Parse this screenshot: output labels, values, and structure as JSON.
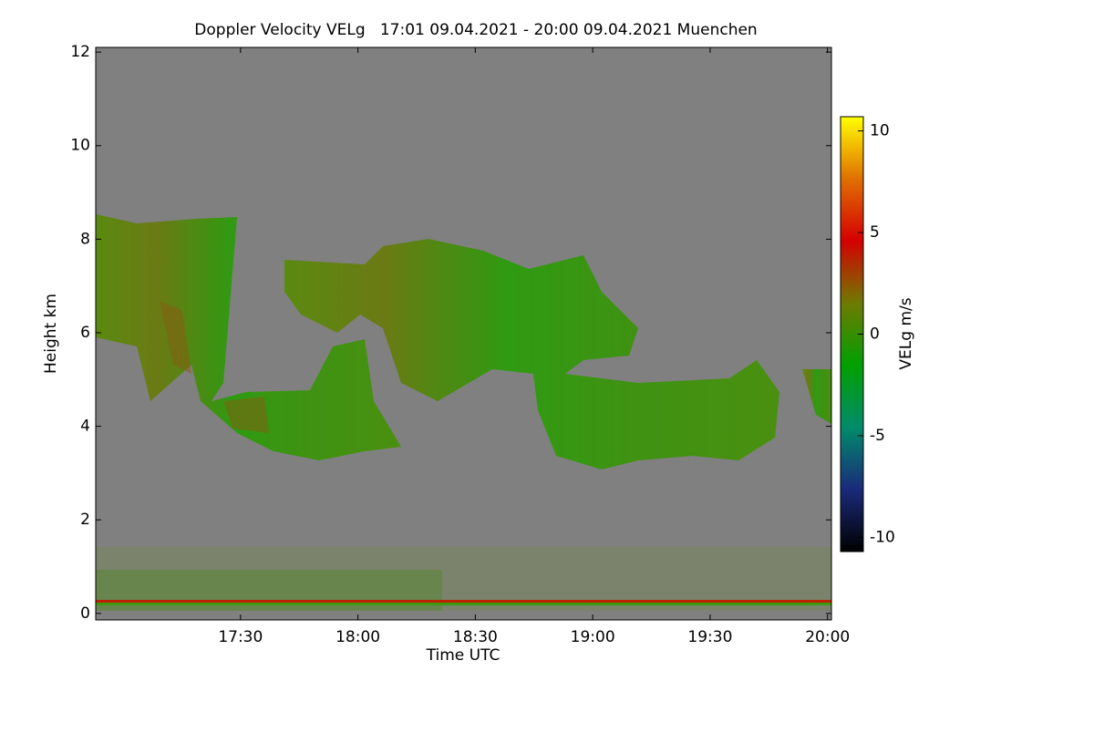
{
  "chart_data": {
    "type": "heatmap",
    "title": "Doppler Velocity VELg   17:01 09.04.2021 - 20:00 09.04.2021 Muenchen",
    "xlabel": "Time UTC",
    "ylabel": "Height km",
    "xlim": [
      1013,
      1201
    ],
    "xticks": [
      {
        "value": 1050,
        "label": "17:30"
      },
      {
        "value": 1080,
        "label": "18:00"
      },
      {
        "value": 1110,
        "label": "18:30"
      },
      {
        "value": 1140,
        "label": "19:00"
      },
      {
        "value": 1170,
        "label": "19:30"
      },
      {
        "value": 1200,
        "label": "20:00"
      }
    ],
    "ylim": [
      -0.14,
      12.1
    ],
    "yticks": [
      0,
      2,
      4,
      6,
      8,
      10,
      12
    ],
    "background": "#808080",
    "colorbar": {
      "label": "VELg m/s",
      "clim": [
        -10.7,
        10.7
      ],
      "ticks": [
        10,
        5,
        0,
        -5,
        -10
      ],
      "colors": [
        "#000000",
        "#1a2a7a",
        "#008b6b",
        "#00a000",
        "#6f7a00",
        "#d40000",
        "#e07000",
        "#ffff00"
      ]
    }
  }
}
